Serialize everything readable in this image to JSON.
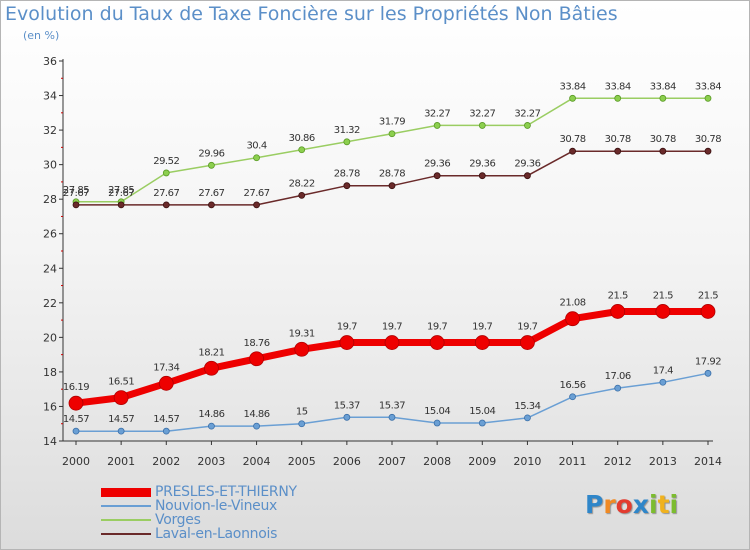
{
  "title": "Evolution du Taux de Taxe Foncière sur les Propriétés Non Bâties",
  "unit_label": "(en %)",
  "brand": {
    "letters": [
      "P",
      "r",
      "o",
      "x",
      "i",
      "t",
      "i"
    ],
    "colors": [
      "#2f86c9",
      "#f08a24",
      "#e33b2f",
      "#2f86c9",
      "#7cbc2f",
      "#f0b21e",
      "#7cbc2f"
    ]
  },
  "chart_data": {
    "type": "line",
    "title": "Evolution du Taux de Taxe Foncière sur les Propriétés Non Bâties",
    "ylabel": "(en %)",
    "xlabel": "",
    "x": [
      2000,
      2001,
      2002,
      2003,
      2004,
      2005,
      2006,
      2007,
      2008,
      2009,
      2010,
      2011,
      2012,
      2013,
      2014
    ],
    "x_tick_labels": [
      "2000",
      "2001",
      "2002",
      "2003",
      "2004",
      "2005",
      "2006",
      "2007",
      "2008",
      "2009",
      "2010",
      "2011",
      "2012",
      "2013",
      "2014"
    ],
    "ylim": [
      14,
      36
    ],
    "y_ticks": [
      14,
      16,
      18,
      20,
      22,
      24,
      26,
      28,
      30,
      32,
      34,
      36
    ],
    "grid": false,
    "legend_position": "bottom-left",
    "series": [
      {
        "name": "Vorges",
        "color": "#9acd62",
        "values": [
          27.85,
          27.85,
          29.52,
          29.96,
          30.4,
          30.86,
          31.32,
          31.79,
          32.27,
          32.27,
          32.27,
          33.84,
          33.84,
          33.84,
          33.84
        ],
        "labels": [
          "27.85",
          "27.85",
          "29.52",
          "29.96",
          "30.4",
          "30.86",
          "31.32",
          "31.79",
          "32.27",
          "32.27",
          "32.27",
          "33.84",
          "33.84",
          "33.84",
          "33.84"
        ]
      },
      {
        "name": "Laval-en-Laonnois",
        "color": "#6a2a2a",
        "values": [
          27.67,
          27.67,
          27.67,
          27.67,
          27.67,
          28.22,
          28.78,
          28.78,
          29.36,
          29.36,
          29.36,
          30.78,
          30.78,
          30.78,
          30.78
        ],
        "labels": [
          "27.67",
          "27.67",
          "27.67",
          "27.67",
          "27.67",
          "28.22",
          "28.78",
          "28.78",
          "29.36",
          "29.36",
          "29.36",
          "30.78",
          "30.78",
          "30.78",
          "30.78"
        ]
      },
      {
        "name": "Nouvion-le-Vineux",
        "color": "#6a9fd4",
        "values": [
          14.57,
          14.57,
          14.57,
          14.86,
          14.86,
          15,
          15.37,
          15.37,
          15.04,
          15.04,
          15.34,
          16.56,
          17.06,
          17.4,
          17.92
        ],
        "labels": [
          "14.57",
          "14.57",
          "14.57",
          "14.86",
          "14.86",
          "15",
          "15.37",
          "15.37",
          "15.04",
          "15.04",
          "15.34",
          "16.56",
          "17.06",
          "17.4",
          "17.92"
        ]
      },
      {
        "name": "PRESLES-ET-THIERNY",
        "color": "#ee0000",
        "values": [
          16.19,
          16.51,
          17.34,
          18.21,
          18.76,
          19.31,
          19.7,
          19.7,
          19.7,
          19.7,
          19.7,
          21.08,
          21.5,
          21.5,
          21.5
        ],
        "labels": [
          "16.19",
          "16.51",
          "17.34",
          "18.21",
          "18.76",
          "19.31",
          "19.7",
          "19.7",
          "19.7",
          "19.7",
          "19.7",
          "21.08",
          "21.5",
          "21.5",
          "21.5"
        ]
      }
    ],
    "legend_order": [
      "PRESLES-ET-THIERNY",
      "Nouvion-le-Vineux",
      "Vorges",
      "Laval-en-Laonnois"
    ]
  }
}
